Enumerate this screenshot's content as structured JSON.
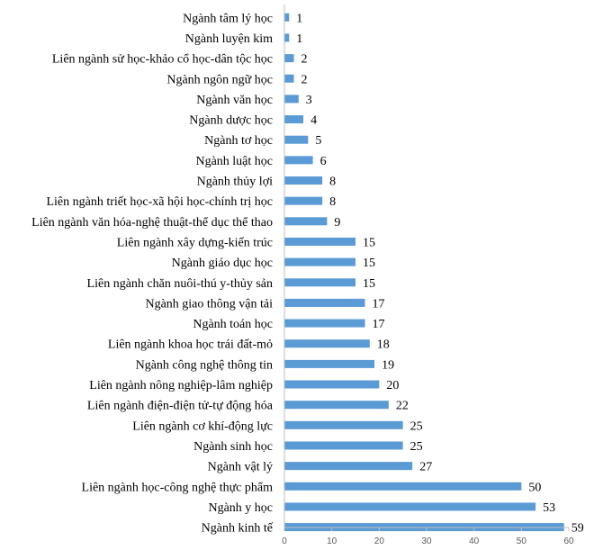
{
  "chart_data": {
    "type": "bar",
    "orientation": "horizontal",
    "title": "",
    "xlabel": "",
    "ylabel": "",
    "xlim": [
      0,
      60
    ],
    "x_ticks": [
      0,
      10,
      20,
      30,
      40,
      50,
      60
    ],
    "grid": false,
    "legend": "none",
    "bar_color": "#5b9bd5",
    "categories": [
      "Ngành tâm lý học",
      "Ngành luyện kim",
      "Liên ngành sử học-khảo cổ học-dân tộc học",
      "Ngành ngôn ngữ học",
      "Ngành văn học",
      "Ngành dược học",
      "Ngành tơ học",
      "Ngành luật học",
      "Ngành thủy lợi",
      "Liên ngành triết học-xã hội học-chính trị học",
      "Liên ngành văn hóa-nghệ thuật-thể dục thể thao",
      "Liên ngành xây dựng-kiến trúc",
      "Ngành giáo dục học",
      "Liên ngành chăn nuôi-thú y-thủy sản",
      "Ngành giao thông vận tải",
      "Ngành toán học",
      "Liên ngành khoa học trái đất-mỏ",
      "Ngành công nghệ thông tin",
      "Liên ngành nông nghiệp-lâm nghiệp",
      "Liên ngành điện-điện tử-tự động hóa",
      "Liên ngành cơ khí-động lực",
      "Ngành sinh học",
      "Ngành vật lý",
      "Liên ngành học-công nghệ thực phẩm",
      "Ngành y học",
      "Ngành kinh tế"
    ],
    "values": [
      1,
      1,
      2,
      2,
      3,
      4,
      5,
      6,
      8,
      8,
      9,
      15,
      15,
      15,
      17,
      17,
      18,
      19,
      20,
      22,
      25,
      25,
      27,
      50,
      53,
      59
    ]
  }
}
